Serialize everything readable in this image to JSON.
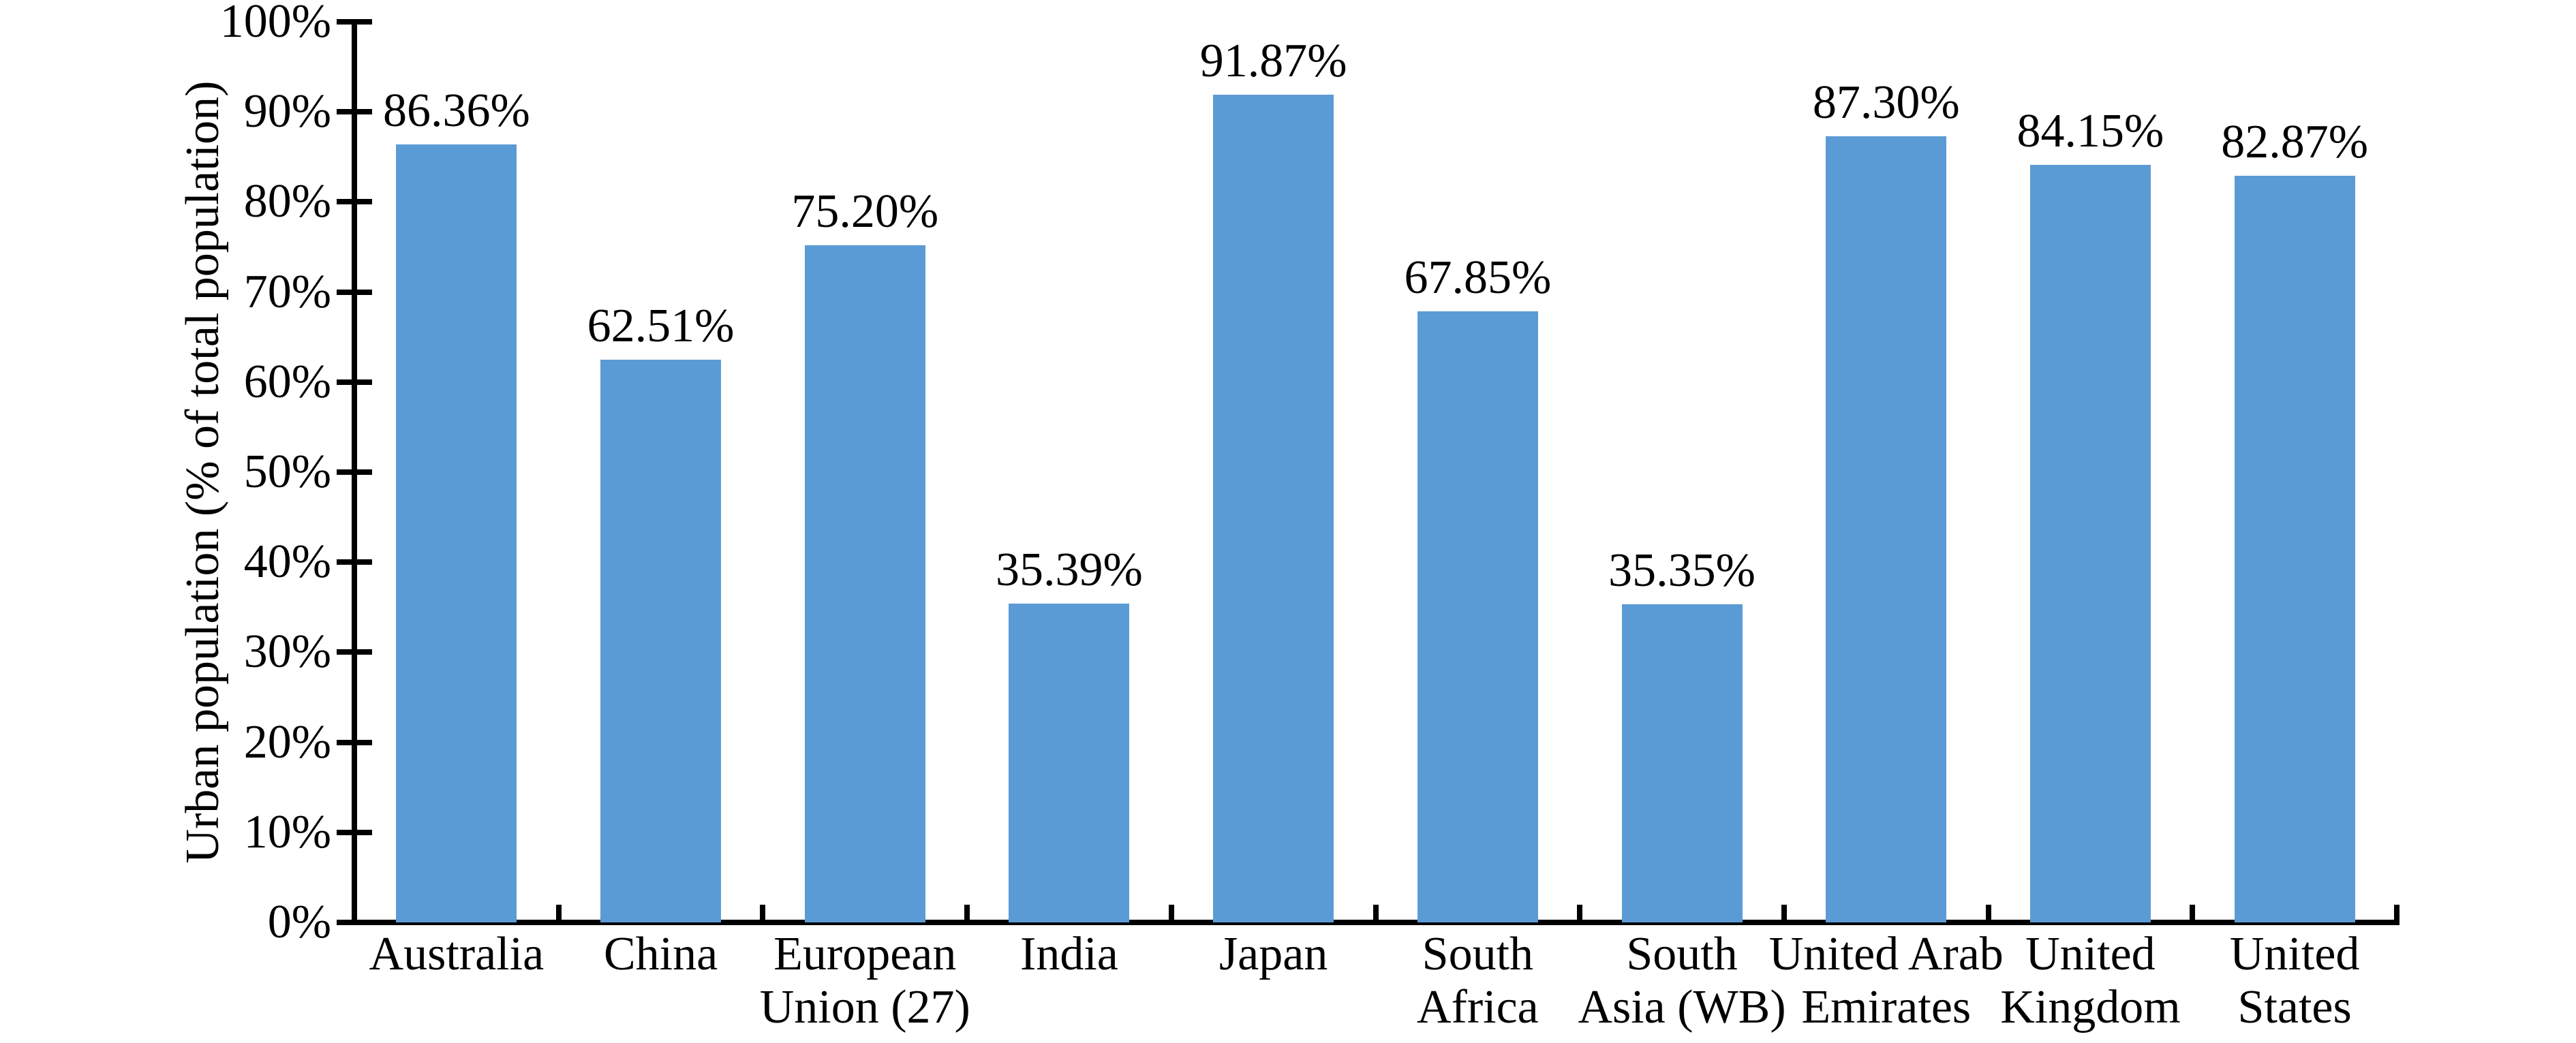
{
  "chart_data": {
    "type": "bar",
    "title": "",
    "xlabel": "",
    "ylabel": "Urban population (% of total population)",
    "categories": [
      "Australia",
      "China",
      "European Union (27)",
      "India",
      "Japan",
      "South Africa",
      "South Asia (WB)",
      "United Arab Emirates",
      "United Kingdom",
      "United States"
    ],
    "category_lines": [
      [
        "Australia"
      ],
      [
        "China"
      ],
      [
        "European",
        "Union (27)"
      ],
      [
        "India"
      ],
      [
        "Japan"
      ],
      [
        "South",
        "Africa"
      ],
      [
        "South",
        "Asia (WB)"
      ],
      [
        "United Arab",
        "Emirates"
      ],
      [
        "United",
        "Kingdom"
      ],
      [
        "United",
        "States"
      ]
    ],
    "values": [
      86.36,
      62.51,
      75.2,
      35.39,
      91.87,
      67.85,
      35.35,
      87.3,
      84.15,
      82.87
    ],
    "value_labels": [
      "86.36%",
      "62.51%",
      "75.20%",
      "35.39%",
      "91.87%",
      "67.85%",
      "35.35%",
      "87.30%",
      "84.15%",
      "82.87%"
    ],
    "y_ticks": [
      "0%",
      "10%",
      "20%",
      "30%",
      "40%",
      "50%",
      "60%",
      "70%",
      "80%",
      "90%",
      "100%"
    ],
    "ylim": [
      0,
      100
    ],
    "y_tick_step": 10,
    "grid": false,
    "legend_position": "none",
    "bar_color": "#5B9BD5",
    "axis_color": "#000000",
    "text_color": "#000000",
    "background_color": "#FFFFFF"
  }
}
